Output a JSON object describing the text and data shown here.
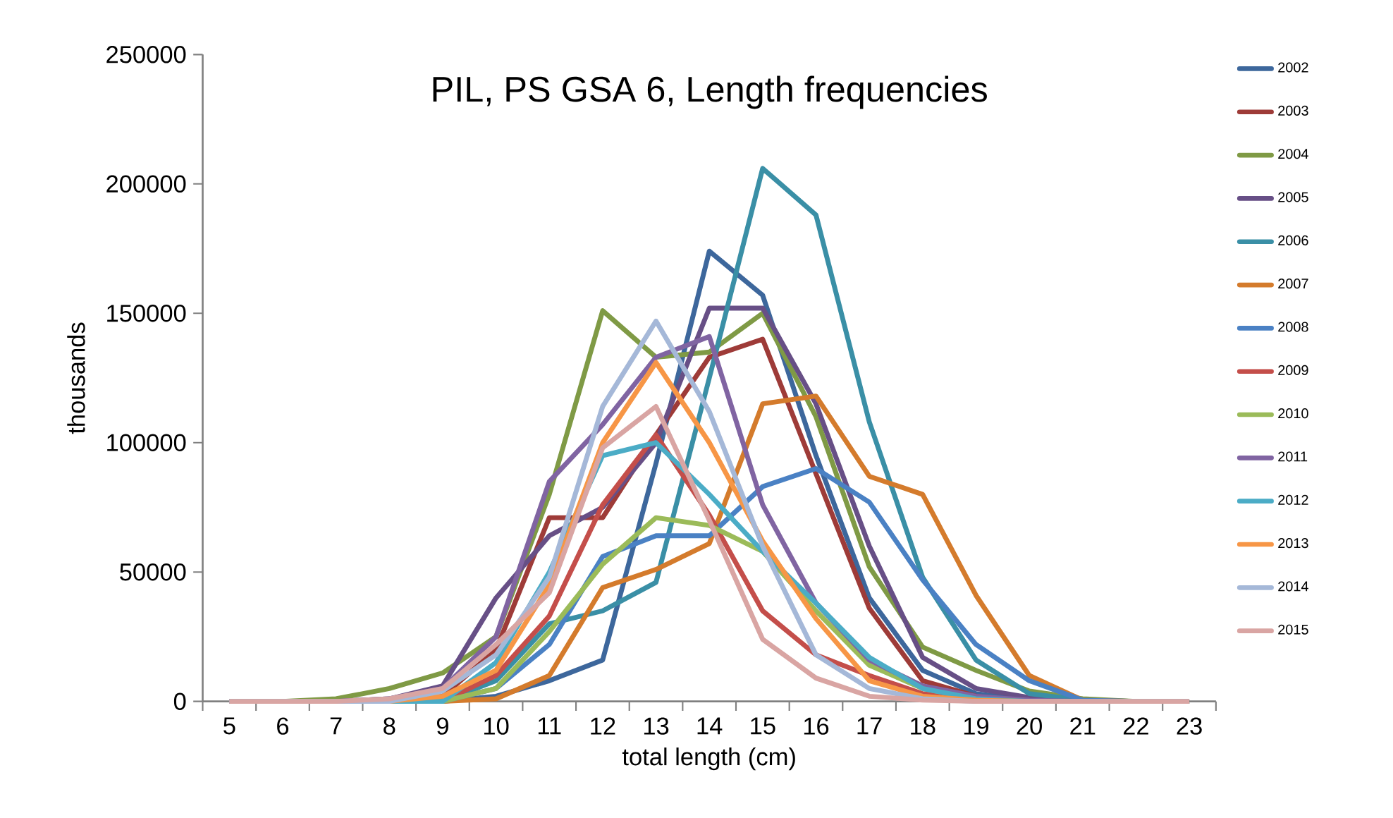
{
  "chart_data": {
    "type": "line",
    "title": "PIL, PS GSA 6, Length frequencies",
    "xlabel": "total length (cm)",
    "ylabel": "thousands",
    "categories": [
      "5",
      "6",
      "7",
      "8",
      "9",
      "10",
      "11",
      "12",
      "13",
      "14",
      "15",
      "16",
      "17",
      "18",
      "19",
      "20",
      "21",
      "22",
      "23"
    ],
    "ylim": [
      0,
      250000
    ],
    "yticks": [
      0,
      50000,
      100000,
      150000,
      200000,
      250000
    ],
    "legend": "right",
    "grid": false,
    "marker": "none",
    "line_style": "solid",
    "series": [
      {
        "name": "2002",
        "color": "#3d679c",
        "values": [
          0,
          0,
          0,
          0,
          0,
          2000,
          8000,
          16000,
          92000,
          174000,
          157000,
          95000,
          40000,
          12000,
          3000,
          500,
          0,
          0,
          0
        ]
      },
      {
        "name": "2003",
        "color": "#9e3b38",
        "values": [
          0,
          0,
          0,
          0,
          2000,
          20000,
          71000,
          71000,
          103000,
          133000,
          140000,
          88000,
          36000,
          8000,
          2000,
          0,
          0,
          0,
          0
        ]
      },
      {
        "name": "2004",
        "color": "#7f9a45",
        "values": [
          0,
          0,
          1000,
          5000,
          11000,
          25000,
          80000,
          151000,
          133000,
          135000,
          150000,
          110000,
          52000,
          21000,
          12000,
          4000,
          1000,
          0,
          0
        ]
      },
      {
        "name": "2005",
        "color": "#674f86",
        "values": [
          0,
          0,
          0,
          1000,
          6000,
          40000,
          64000,
          75000,
          100000,
          152000,
          152000,
          115000,
          60000,
          17000,
          5000,
          1500,
          0,
          0,
          0
        ]
      },
      {
        "name": "2006",
        "color": "#3a8fa6",
        "values": [
          0,
          0,
          0,
          0,
          0,
          8000,
          30000,
          35000,
          46000,
          125000,
          206000,
          188000,
          108000,
          48000,
          16000,
          3000,
          500,
          0,
          0
        ]
      },
      {
        "name": "2007",
        "color": "#d47b2c",
        "values": [
          0,
          0,
          0,
          0,
          0,
          1000,
          10000,
          44000,
          51000,
          61000,
          115000,
          118000,
          87000,
          80000,
          41000,
          10000,
          500,
          0,
          0
        ]
      },
      {
        "name": "2008",
        "color": "#4a81c4",
        "values": [
          0,
          0,
          0,
          0,
          0,
          5000,
          22000,
          56000,
          64000,
          64000,
          83000,
          90000,
          77000,
          47000,
          22000,
          8000,
          500,
          0,
          0
        ]
      },
      {
        "name": "2009",
        "color": "#c44e4a",
        "values": [
          0,
          0,
          0,
          0,
          0,
          10000,
          33000,
          76000,
          103000,
          72000,
          35000,
          18000,
          10000,
          3000,
          1000,
          0,
          0,
          0,
          0
        ]
      },
      {
        "name": "2010",
        "color": "#9bbb59",
        "values": [
          0,
          0,
          0,
          0,
          0,
          5000,
          27000,
          53000,
          71000,
          68000,
          58000,
          35000,
          14000,
          5000,
          1000,
          0,
          0,
          0,
          0
        ]
      },
      {
        "name": "2011",
        "color": "#8064a2",
        "values": [
          0,
          0,
          0,
          1000,
          5000,
          25000,
          85000,
          107000,
          133000,
          141000,
          76000,
          38000,
          16000,
          6000,
          2000,
          500,
          0,
          0,
          0
        ]
      },
      {
        "name": "2012",
        "color": "#4bacc6",
        "values": [
          0,
          0,
          0,
          0,
          0,
          15000,
          50000,
          95000,
          100000,
          80000,
          58000,
          38000,
          17000,
          5000,
          1000,
          0,
          0,
          0,
          0
        ]
      },
      {
        "name": "2013",
        "color": "#f79646",
        "values": [
          null,
          null,
          0,
          0,
          2000,
          12000,
          45000,
          100000,
          131000,
          100000,
          62000,
          32000,
          8000,
          2000,
          500,
          0,
          0,
          null,
          null
        ]
      },
      {
        "name": "2014",
        "color": "#a5b8d8",
        "values": [
          0,
          0,
          0,
          0,
          4000,
          18000,
          48000,
          114000,
          147000,
          112000,
          60000,
          18000,
          5000,
          1000,
          0,
          0,
          0,
          0,
          0
        ]
      },
      {
        "name": "2015",
        "color": "#d9a5a3",
        "values": [
          0,
          0,
          0,
          1000,
          5000,
          22000,
          42000,
          98000,
          114000,
          70000,
          24000,
          9000,
          2000,
          500,
          0,
          0,
          0,
          0,
          0
        ]
      }
    ]
  }
}
